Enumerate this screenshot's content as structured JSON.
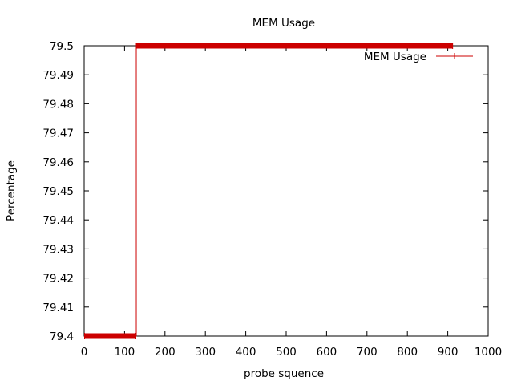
{
  "chart_data": {
    "type": "line",
    "title": "MEM Usage",
    "xlabel": "probe squence",
    "ylabel": "Percentage",
    "xlim": [
      0,
      1000
    ],
    "ylim": [
      79.4,
      79.5
    ],
    "xticks": [
      0,
      100,
      200,
      300,
      400,
      500,
      600,
      700,
      800,
      900,
      1000
    ],
    "yticks": [
      79.4,
      79.41,
      79.42,
      79.43,
      79.44,
      79.45,
      79.46,
      79.47,
      79.48,
      79.49,
      79.5
    ],
    "xtick_labels": [
      "0",
      "100",
      "200",
      "300",
      "400",
      "500",
      "600",
      "700",
      "800",
      "900",
      "1000"
    ],
    "ytick_labels": [
      "79.4",
      "79.41",
      "79.42",
      "79.43",
      "79.44",
      "79.45",
      "79.46",
      "79.47",
      "79.48",
      "79.49",
      "79.5"
    ],
    "grid": false,
    "legend_position": "top-right",
    "series": [
      {
        "name": "MEM Usage",
        "color": "#cc0000",
        "segments": [
          {
            "x_start": 1,
            "x_end": 128,
            "y": 79.4
          },
          {
            "x_start": 129,
            "x_end": 912,
            "y": 79.5
          }
        ]
      }
    ]
  }
}
